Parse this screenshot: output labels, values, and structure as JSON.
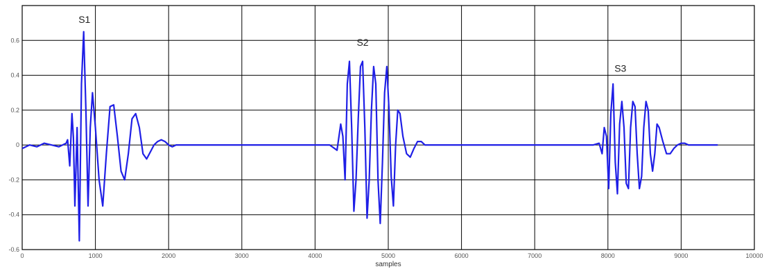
{
  "chart_data": {
    "type": "line",
    "title": "",
    "xlabel": "samples",
    "ylabel": "",
    "xlim": [
      0,
      10000
    ],
    "ylim": [
      -0.6,
      0.8
    ],
    "grid": true,
    "xticks": [
      0,
      1000,
      2000,
      3000,
      4000,
      5000,
      6000,
      7000,
      8000,
      9000,
      10000
    ],
    "xtick_labels": [
      "0",
      "1000",
      "2000",
      "3000",
      "4000",
      "5000",
      "6000",
      "7000",
      "8000",
      "9000",
      "10000"
    ],
    "yticks": [
      -0.6,
      -0.4,
      -0.2,
      0,
      0.2,
      0.4,
      0.6
    ],
    "ytick_labels": [
      "-0.6",
      "-0.4",
      "-0.2",
      "0",
      "0.2",
      "0.4",
      "0.6"
    ],
    "colors": {
      "line": "#1f1fe6",
      "grid": "#000000",
      "background": "#ffffff"
    },
    "series": [
      {
        "x": [
          0,
          100,
          200,
          300,
          400,
          500,
          600,
          620,
          650,
          680,
          700,
          720,
          750,
          780,
          810,
          840,
          870,
          900,
          930,
          960,
          1000,
          1050,
          1100,
          1150,
          1200,
          1250,
          1300,
          1350,
          1400,
          1450,
          1500,
          1550,
          1600,
          1650,
          1700,
          1750,
          1800,
          1850,
          1900,
          1950,
          2000,
          2050,
          2100,
          2200,
          2300,
          2400,
          2500,
          2600,
          2800,
          3000,
          3200,
          3400,
          3600,
          3800,
          4000,
          4200,
          4300,
          4350,
          4380,
          4410,
          4440,
          4470,
          4500,
          4530,
          4560,
          4590,
          4620,
          4650,
          4680,
          4710,
          4740,
          4770,
          4800,
          4830,
          4860,
          4890,
          4920,
          4950,
          4980,
          5010,
          5040,
          5070,
          5100,
          5130,
          5160,
          5200,
          5250,
          5300,
          5350,
          5400,
          5450,
          5500,
          5550,
          5600,
          5700,
          5800,
          6000,
          6200,
          6400,
          6600,
          6800,
          7000,
          7200,
          7400,
          7600,
          7800,
          7880,
          7920,
          7950,
          7980,
          8010,
          8040,
          8070,
          8100,
          8130,
          8160,
          8190,
          8220,
          8250,
          8280,
          8310,
          8340,
          8370,
          8400,
          8430,
          8460,
          8490,
          8520,
          8550,
          8580,
          8610,
          8640,
          8670,
          8700,
          8750,
          8800,
          8850,
          8900,
          8950,
          9000,
          9050,
          9100,
          9200,
          9300,
          9400,
          9500
        ],
        "y": [
          -0.02,
          0.0,
          -0.01,
          0.01,
          0.0,
          -0.01,
          0.01,
          0.03,
          -0.12,
          0.18,
          0.04,
          -0.35,
          0.1,
          -0.55,
          0.35,
          0.65,
          0.2,
          -0.35,
          0.1,
          0.3,
          0.1,
          -0.2,
          -0.35,
          -0.05,
          0.22,
          0.23,
          0.05,
          -0.15,
          -0.2,
          -0.05,
          0.15,
          0.18,
          0.1,
          -0.05,
          -0.08,
          -0.04,
          0.0,
          0.02,
          0.03,
          0.02,
          0.0,
          -0.01,
          0.0,
          0.0,
          0.0,
          0.0,
          0.0,
          0.0,
          0.0,
          0.0,
          0.0,
          0.0,
          0.0,
          0.0,
          0.0,
          0.0,
          -0.03,
          0.12,
          0.05,
          -0.2,
          0.35,
          0.48,
          0.1,
          -0.38,
          -0.2,
          0.15,
          0.45,
          0.48,
          0.1,
          -0.42,
          -0.2,
          0.2,
          0.45,
          0.35,
          -0.2,
          -0.45,
          -0.1,
          0.3,
          0.45,
          0.2,
          -0.18,
          -0.35,
          0.0,
          0.2,
          0.18,
          0.05,
          -0.05,
          -0.07,
          -0.02,
          0.02,
          0.02,
          0.0,
          0.0,
          0.0,
          0.0,
          0.0,
          0.0,
          0.0,
          0.0,
          0.0,
          0.0,
          0.0,
          0.0,
          0.0,
          0.0,
          0.0,
          0.01,
          -0.05,
          0.1,
          0.05,
          -0.25,
          0.18,
          0.35,
          -0.1,
          -0.28,
          0.12,
          0.25,
          0.1,
          -0.22,
          -0.25,
          0.1,
          0.25,
          0.22,
          -0.05,
          -0.25,
          -0.18,
          0.1,
          0.25,
          0.2,
          -0.05,
          -0.15,
          -0.05,
          0.12,
          0.1,
          0.02,
          -0.05,
          -0.05,
          -0.02,
          0.0,
          0.01,
          0.01,
          0.0,
          0.0,
          0.0,
          0.0,
          0.0
        ]
      }
    ],
    "annotations": [
      {
        "text": "S1",
        "x": 850,
        "y": 0.7
      },
      {
        "text": "S2",
        "x": 4650,
        "y": 0.57
      },
      {
        "text": "S3",
        "x": 8170,
        "y": 0.42
      }
    ]
  }
}
